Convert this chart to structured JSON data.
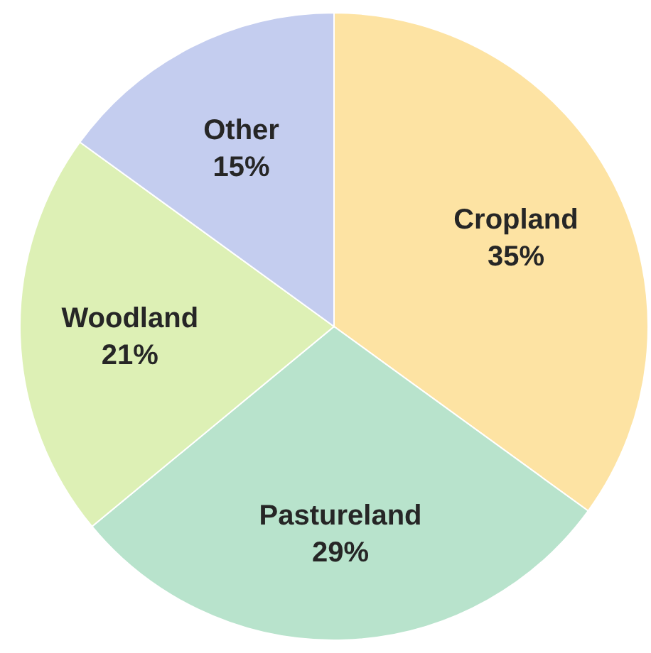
{
  "chart_data": {
    "type": "pie",
    "categories": [
      "Cropland",
      "Pastureland",
      "Woodland",
      "Other"
    ],
    "values": [
      35,
      29,
      21,
      15
    ],
    "colors": [
      "#fde3a3",
      "#b8e3cc",
      "#ddf0b5",
      "#c4cdef"
    ],
    "value_labels": [
      "35%",
      "29%",
      "21%",
      "15%"
    ],
    "legend": false
  }
}
